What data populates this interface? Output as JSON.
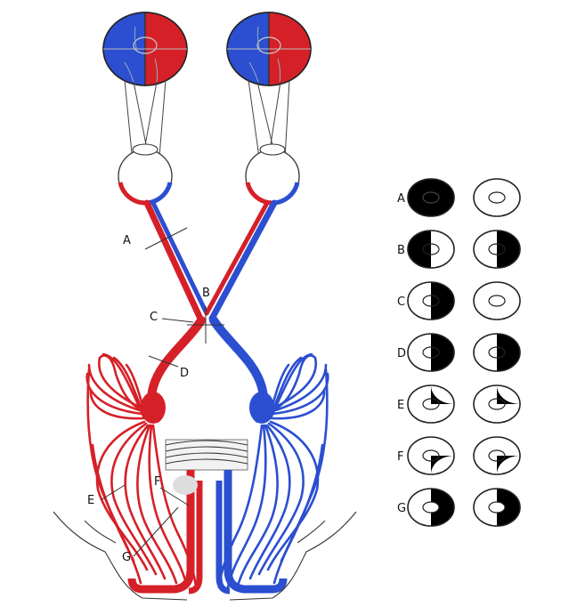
{
  "colors": {
    "left_field": "#d62028",
    "right_field": "#2b4fd0",
    "defect": "#000000",
    "outline": "#333333",
    "background": "#ffffff"
  },
  "lesion_labels": [
    "A",
    "B",
    "C",
    "D",
    "E",
    "F",
    "G"
  ],
  "field_labels": [
    "A",
    "B",
    "C",
    "D",
    "E",
    "F",
    "G"
  ],
  "field_defects": [
    {
      "label": "A",
      "left_eye": "complete-blindness",
      "right_eye": "normal"
    },
    {
      "label": "B",
      "left_eye": "temporal-hemianopia",
      "right_eye": "temporal-hemianopia"
    },
    {
      "label": "C",
      "left_eye": "nasal-hemianopia",
      "right_eye": "normal"
    },
    {
      "label": "D",
      "left_eye": "homonymous-hemianopia",
      "right_eye": "homonymous-hemianopia"
    },
    {
      "label": "E",
      "left_eye": "superior-quadrantanopia",
      "right_eye": "superior-quadrantanopia"
    },
    {
      "label": "F",
      "left_eye": "inferior-quadrantanopia",
      "right_eye": "inferior-quadrantanopia"
    },
    {
      "label": "G",
      "left_eye": "hemianopia-macular-sparing",
      "right_eye": "hemianopia-macular-sparing"
    }
  ]
}
